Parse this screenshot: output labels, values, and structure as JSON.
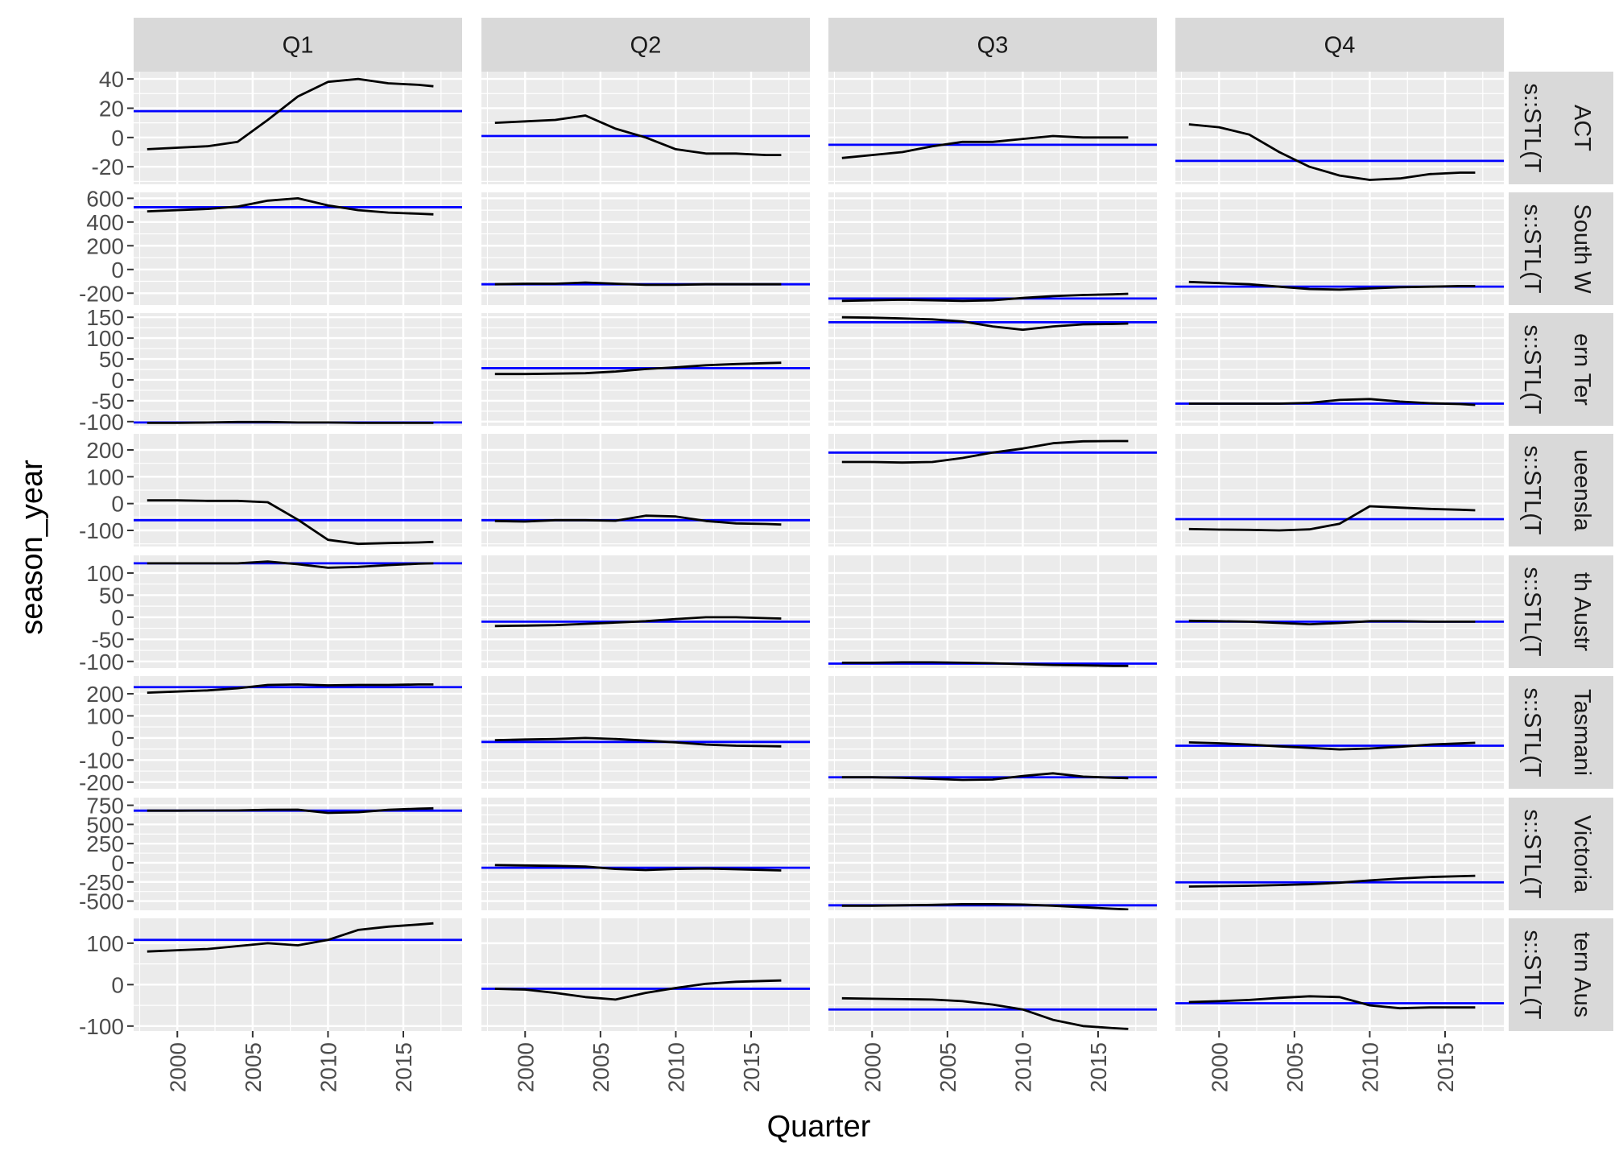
{
  "chart_data": {
    "type": "line",
    "xlabel": "Quarter",
    "ylabel": "season_year",
    "colors": {
      "series": "#000000",
      "reference_line": "#0000ff",
      "panel_bg": "#ebebeb",
      "strip_bg": "#d9d9d9",
      "grid": "#ffffff"
    },
    "grid": true,
    "columns": [
      "Q1",
      "Q2",
      "Q3",
      "Q4"
    ],
    "rows": [
      {
        "label": "ACT",
        "model_label": "s::STL(T"
      },
      {
        "label": "South W",
        "model_label": "s::STL(T"
      },
      {
        "label": "ern Ter",
        "model_label": "s::STL(T"
      },
      {
        "label": "ueensla",
        "model_label": "s::STL(T"
      },
      {
        "label": "th Austr",
        "model_label": "s::STL(T"
      },
      {
        "label": "Tasmani",
        "model_label": "s::STL(T"
      },
      {
        "label": "Victoria",
        "model_label": "s::STL(T"
      },
      {
        "label": "tern Aus",
        "model_label": "s::STL(T"
      }
    ],
    "x_ticks": [
      "2000",
      "2005",
      "2010",
      "2015"
    ],
    "x_tick_values": [
      2000,
      2005,
      2010,
      2015
    ],
    "xlim": [
      1997.1,
      2018.9
    ],
    "x_years": [
      1998,
      2000,
      2002,
      2004,
      2006,
      2008,
      2010,
      2012,
      2014,
      2016,
      2017
    ],
    "row_axes": [
      {
        "ylim": [
          -32,
          45
        ],
        "ticks": [
          40,
          20,
          0,
          -20
        ],
        "tick_labels": [
          "40",
          "20",
          "0",
          "-20"
        ],
        "minor": [
          30,
          10,
          -10,
          -30
        ]
      },
      {
        "ylim": [
          -300,
          650
        ],
        "ticks": [
          600,
          400,
          200,
          0,
          -200
        ],
        "tick_labels": [
          "600",
          "400",
          "200",
          "0",
          "-200"
        ],
        "minor": [
          500,
          300,
          100,
          -100
        ]
      },
      {
        "ylim": [
          -110,
          160
        ],
        "ticks": [
          150,
          100,
          50,
          0,
          -50,
          -100
        ],
        "tick_labels": [
          "150",
          "100",
          "50",
          "0",
          "-50",
          "-100"
        ],
        "minor": [
          125,
          75,
          25,
          -25,
          -75
        ]
      },
      {
        "ylim": [
          -160,
          260
        ],
        "ticks": [
          200,
          100,
          0,
          -100
        ],
        "tick_labels": [
          "200",
          "100",
          "0",
          "-100"
        ],
        "minor": [
          150,
          50,
          -50,
          -150
        ]
      },
      {
        "ylim": [
          -115,
          140
        ],
        "ticks": [
          100,
          50,
          0,
          -50,
          -100
        ],
        "tick_labels": [
          "100",
          "50",
          "0",
          "-50",
          "-100"
        ],
        "minor": [
          75,
          25,
          -25,
          -75
        ]
      },
      {
        "ylim": [
          -230,
          280
        ],
        "ticks": [
          200,
          100,
          0,
          -100,
          -200
        ],
        "tick_labels": [
          "200",
          "100",
          "0",
          "-100",
          "-200"
        ],
        "minor": [
          150,
          50,
          -50,
          -150
        ]
      },
      {
        "ylim": [
          -620,
          850
        ],
        "ticks": [
          750,
          500,
          250,
          0,
          -250,
          -500
        ],
        "tick_labels": [
          "750",
          "500",
          "250",
          "0",
          "-250",
          "-500"
        ],
        "minor": [
          625,
          375,
          125,
          -125,
          -375
        ]
      },
      {
        "ylim": [
          -112,
          160
        ],
        "ticks": [
          100,
          0,
          -100
        ],
        "tick_labels": [
          "100",
          "0",
          "-100"
        ],
        "minor": [
          50,
          -50
        ]
      }
    ],
    "panels": [
      [
        {
          "values": [
            -8,
            -7,
            -6,
            -3,
            12,
            28,
            38,
            40,
            37,
            36,
            35
          ],
          "ref": 18
        },
        {
          "values": [
            10,
            11,
            12,
            15,
            6,
            0,
            -8,
            -11,
            -11,
            -12,
            -12
          ],
          "ref": 1
        },
        {
          "values": [
            -14,
            -12,
            -10,
            -6,
            -3,
            -3,
            -1,
            1,
            0,
            0,
            0
          ],
          "ref": -5
        },
        {
          "values": [
            9,
            7,
            2,
            -10,
            -20,
            -26,
            -29,
            -28,
            -25,
            -24,
            -24
          ],
          "ref": -16
        }
      ],
      [
        {
          "values": [
            490,
            500,
            510,
            530,
            580,
            600,
            540,
            500,
            480,
            470,
            465
          ],
          "ref": 525
        },
        {
          "values": [
            -125,
            -120,
            -120,
            -110,
            -120,
            -130,
            -130,
            -125,
            -125,
            -125,
            -125
          ],
          "ref": -125
        },
        {
          "values": [
            -265,
            -260,
            -255,
            -260,
            -265,
            -260,
            -240,
            -225,
            -215,
            -210,
            -205
          ],
          "ref": -245
        },
        {
          "values": [
            -105,
            -115,
            -125,
            -145,
            -165,
            -170,
            -160,
            -150,
            -145,
            -140,
            -140
          ],
          "ref": -145
        }
      ],
      [
        {
          "values": [
            -103,
            -103,
            -102,
            -101,
            -101,
            -102,
            -102,
            -103,
            -103,
            -103,
            -103
          ],
          "ref": -102
        },
        {
          "values": [
            14,
            14,
            15,
            16,
            20,
            26,
            30,
            35,
            38,
            40,
            41
          ],
          "ref": 28
        },
        {
          "values": [
            150,
            149,
            147,
            145,
            140,
            128,
            120,
            128,
            133,
            134,
            135
          ],
          "ref": 138
        },
        {
          "values": [
            -57,
            -57,
            -57,
            -57,
            -55,
            -48,
            -46,
            -52,
            -56,
            -58,
            -60
          ],
          "ref": -57
        }
      ],
      [
        {
          "values": [
            12,
            12,
            10,
            10,
            5,
            -60,
            -135,
            -150,
            -147,
            -145,
            -143
          ],
          "ref": -62
        },
        {
          "values": [
            -65,
            -67,
            -62,
            -62,
            -64,
            -45,
            -48,
            -65,
            -74,
            -76,
            -78
          ],
          "ref": -62
        },
        {
          "values": [
            155,
            155,
            153,
            155,
            170,
            190,
            205,
            225,
            232,
            233,
            233
          ],
          "ref": 190
        },
        {
          "values": [
            -95,
            -97,
            -98,
            -100,
            -96,
            -75,
            -10,
            -15,
            -20,
            -23,
            -25
          ],
          "ref": -58
        }
      ],
      [
        {
          "values": [
            122,
            122,
            122,
            122,
            126,
            120,
            112,
            114,
            118,
            121,
            122
          ],
          "ref": 122
        },
        {
          "values": [
            -20,
            -19,
            -18,
            -15,
            -12,
            -9,
            -4,
            0,
            0,
            -2,
            -3
          ],
          "ref": -10
        },
        {
          "values": [
            -103,
            -103,
            -102,
            -102,
            -103,
            -104,
            -106,
            -108,
            -109,
            -110,
            -110
          ],
          "ref": -105
        },
        {
          "values": [
            -8,
            -9,
            -10,
            -13,
            -16,
            -13,
            -9,
            -9,
            -10,
            -10,
            -10
          ],
          "ref": -10
        }
      ],
      [
        {
          "values": [
            205,
            210,
            215,
            225,
            240,
            242,
            238,
            240,
            240,
            242,
            242
          ],
          "ref": 230
        },
        {
          "values": [
            -10,
            -7,
            -5,
            0,
            -5,
            -12,
            -20,
            -30,
            -35,
            -37,
            -38
          ],
          "ref": -18
        },
        {
          "values": [
            -178,
            -178,
            -180,
            -185,
            -190,
            -188,
            -172,
            -160,
            -175,
            -180,
            -182
          ],
          "ref": -178
        },
        {
          "values": [
            -20,
            -24,
            -30,
            -38,
            -45,
            -52,
            -48,
            -40,
            -30,
            -25,
            -22
          ],
          "ref": -35
        }
      ],
      [
        {
          "values": [
            680,
            680,
            682,
            683,
            690,
            692,
            650,
            660,
            690,
            705,
            710
          ],
          "ref": 680
        },
        {
          "values": [
            -30,
            -35,
            -40,
            -50,
            -80,
            -95,
            -80,
            -75,
            -85,
            -95,
            -100
          ],
          "ref": -65
        },
        {
          "values": [
            -560,
            -560,
            -555,
            -550,
            -540,
            -540,
            -545,
            -560,
            -580,
            -600,
            -610
          ],
          "ref": -555
        },
        {
          "values": [
            -310,
            -305,
            -300,
            -290,
            -280,
            -260,
            -230,
            -205,
            -185,
            -175,
            -170
          ],
          "ref": -255
        }
      ],
      [
        {
          "values": [
            80,
            83,
            86,
            93,
            100,
            95,
            108,
            132,
            140,
            145,
            148
          ],
          "ref": 108
        },
        {
          "values": [
            -10,
            -12,
            -20,
            -30,
            -36,
            -20,
            -8,
            2,
            7,
            9,
            10
          ],
          "ref": -10
        },
        {
          "values": [
            -33,
            -34,
            -35,
            -36,
            -40,
            -48,
            -60,
            -85,
            -100,
            -105,
            -107
          ],
          "ref": -60
        },
        {
          "values": [
            -42,
            -40,
            -37,
            -32,
            -28,
            -30,
            -50,
            -57,
            -55,
            -55,
            -55
          ],
          "ref": -45
        }
      ]
    ]
  }
}
